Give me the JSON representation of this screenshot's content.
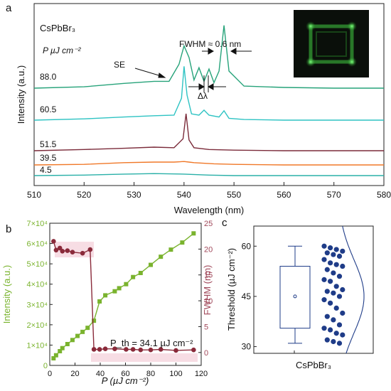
{
  "chart_data": [
    {
      "panel": "a",
      "type": "line",
      "xlabel": "Wavelength (nm)",
      "ylabel": "Intensity (a.u.)",
      "xlim": [
        510,
        580
      ],
      "xticks": [
        510,
        520,
        530,
        540,
        550,
        560,
        570,
        580
      ],
      "material": "CsPbBr₃",
      "legend_title": "P µJ cm⁻²",
      "annotations": {
        "fwhm": "FWHM ≈ 0.6 nm",
        "se": "SE",
        "delta": "Δλ"
      },
      "series": [
        {
          "name": "88.0",
          "color": "#27a37a",
          "baseline": 0.98,
          "x": [
            510,
            520,
            528,
            534,
            537,
            539,
            540,
            541,
            542,
            543,
            544,
            545,
            546,
            547,
            548,
            549,
            552,
            560,
            570,
            580
          ],
          "y": [
            0.0,
            0.02,
            0.07,
            0.1,
            0.1,
            0.35,
            0.62,
            0.45,
            0.12,
            0.3,
            0.1,
            0.28,
            0.08,
            0.25,
            0.92,
            0.25,
            0.03,
            0.01,
            0.0,
            0.0
          ]
        },
        {
          "name": "60.5",
          "color": "#2ec3c3",
          "baseline": 0.98,
          "x": [
            510,
            520,
            528,
            534,
            538,
            539.5,
            540,
            540.6,
            541.5,
            543,
            544,
            545,
            547,
            548,
            549,
            552,
            560,
            570,
            580
          ],
          "y": [
            0.0,
            0.02,
            0.05,
            0.07,
            0.08,
            0.35,
            0.86,
            0.4,
            0.1,
            0.08,
            0.16,
            0.08,
            0.05,
            0.15,
            0.03,
            0.01,
            0.0,
            0.0,
            0.0
          ]
        },
        {
          "name": "51.5",
          "color": "#7b2b3a",
          "baseline": 0.98,
          "x": [
            510,
            520,
            528,
            534,
            538,
            539.8,
            540.4,
            541,
            542,
            545,
            550,
            560,
            570,
            580
          ],
          "y": [
            0.0,
            0.02,
            0.04,
            0.06,
            0.05,
            0.2,
            0.62,
            0.18,
            0.05,
            0.02,
            0.01,
            0.0,
            0.0,
            0.0
          ]
        },
        {
          "name": "39.5",
          "color": "#f07828",
          "baseline": 0.98,
          "x": [
            510,
            520,
            528,
            534,
            538,
            540,
            541,
            542,
            546,
            550,
            560,
            570,
            580
          ],
          "y": [
            0.0,
            0.01,
            0.04,
            0.05,
            0.05,
            0.06,
            0.05,
            0.04,
            0.02,
            0.01,
            0.0,
            0.0,
            0.0
          ]
        },
        {
          "name": "4.5",
          "color": "#2ab0a8",
          "baseline": 0.98,
          "x": [
            510,
            520,
            528,
            534,
            540,
            545,
            550,
            560,
            570,
            580
          ],
          "y": [
            0.0,
            0.01,
            0.03,
            0.04,
            0.03,
            0.01,
            0.0,
            0.0,
            0.0,
            0.0
          ]
        }
      ]
    },
    {
      "panel": "b",
      "type": "line",
      "xlabel": "P (µJ cm⁻²)",
      "ylabel_left": "Intensity (a.u.)",
      "ylabel_right": "FWHM (nm)",
      "xlim": [
        0,
        120
      ],
      "ylim_left": [
        0,
        70000
      ],
      "ylim_right": [
        -2.5,
        25
      ],
      "xticks": [
        "0",
        "20",
        "40",
        "60",
        "80",
        "100",
        "120"
      ],
      "yticks_left": [
        "0",
        "1×10⁴",
        "2×10⁴",
        "3×10⁴",
        "4×10⁴",
        "5×10⁴",
        "6×10⁴",
        "7×10⁴"
      ],
      "yticks_right": [
        "0",
        "5",
        "10",
        "15",
        "20",
        "25"
      ],
      "annotation": "P_th = 34.1 µJ cm⁻²",
      "series": [
        {
          "name": "Intensity",
          "axis": "left",
          "color": "#7ab32e",
          "x": [
            3,
            5,
            8,
            10,
            14,
            18,
            22,
            26,
            30,
            35,
            39.5,
            44,
            51.5,
            55,
            60.5,
            66,
            72,
            80,
            88,
            96,
            105,
            114
          ],
          "y": [
            3500,
            5000,
            7000,
            8500,
            10500,
            12500,
            14500,
            16500,
            18500,
            22000,
            31500,
            34500,
            36500,
            38000,
            40000,
            43500,
            45500,
            49500,
            53500,
            57000,
            60500,
            65000
          ]
        },
        {
          "name": "FWHM",
          "axis": "right",
          "color": "#8a2a3a",
          "x": [
            3,
            5,
            8,
            10,
            14,
            18,
            26,
            32,
            35,
            39.5,
            44,
            51.5,
            60.5,
            66,
            72,
            80,
            88,
            100,
            114
          ],
          "y": [
            21.5,
            19.8,
            20.2,
            19.6,
            19.7,
            19.4,
            19.2,
            19.9,
            0.6,
            0.6,
            0.7,
            0.7,
            0.6,
            0.6,
            0.5,
            0.5,
            0.6,
            0.4,
            0.5
          ]
        }
      ]
    },
    {
      "panel": "c",
      "type": "scatter",
      "xlabel": "CsPbBr₃",
      "ylabel": "Threshold (µJ cm⁻²)",
      "ylim": [
        28,
        66
      ],
      "yticks": [
        "30",
        "45",
        "60"
      ],
      "box": {
        "min": 31,
        "q1": 35.5,
        "median": 45,
        "mean": 45,
        "q3": 54,
        "max": 60
      },
      "points": [
        60,
        59.5,
        59,
        58.5,
        58,
        57.5,
        57,
        56,
        55,
        54.5,
        54,
        53,
        52,
        51,
        50,
        49.5,
        48,
        47,
        46.5,
        46,
        45,
        44,
        43,
        41.5,
        40,
        39,
        38,
        36.5,
        35.5,
        35,
        34,
        33.5,
        32,
        31.5,
        31
      ],
      "point_color": "#1f3c88",
      "curve_color": "#1f3c88"
    }
  ],
  "labels": {
    "panel_a": "a",
    "panel_b": "b",
    "panel_c": "c"
  }
}
